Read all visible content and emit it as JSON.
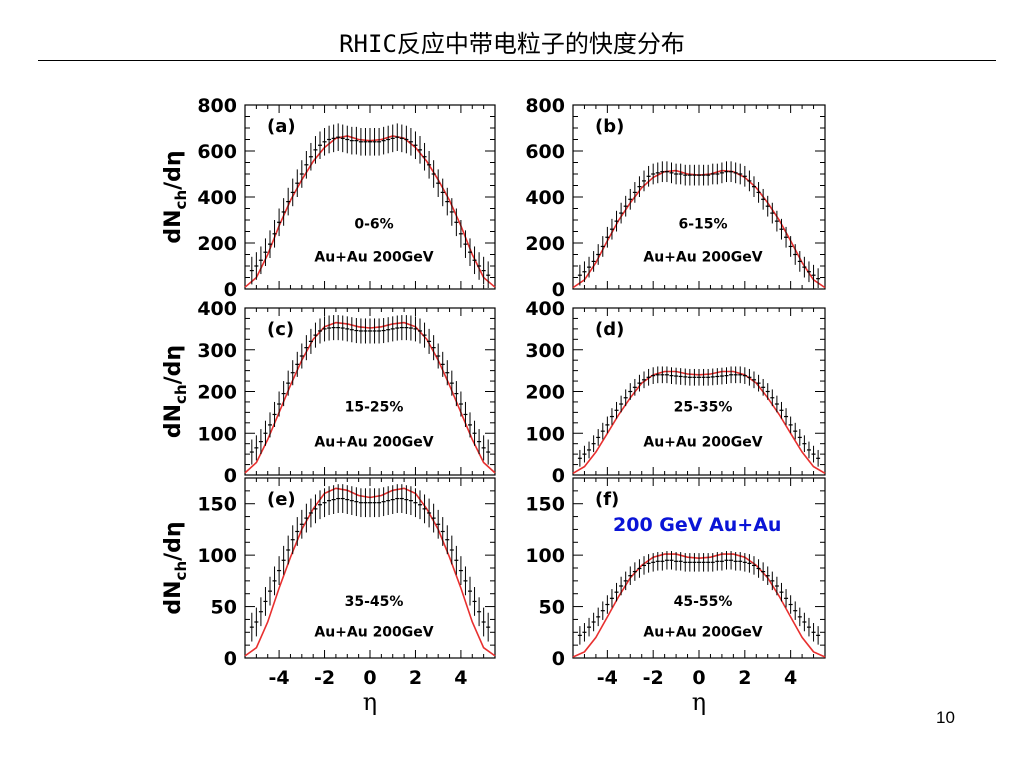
{
  "slide": {
    "title": "RHIC反应中带电粒子的快度分布",
    "page_number": "10"
  },
  "colors": {
    "model_curve": "#e8302f",
    "data_points": "#000000",
    "highlight_text": "#0a14d6"
  },
  "chart_data": [
    {
      "type": "scatter",
      "panel": "(a)",
      "centrality": "0-6%",
      "system": "Au+Au 200GeV",
      "ylabel_main": "dN",
      "ylabel_sub": "ch",
      "ylabel_tail": "/dη",
      "xlabel": "",
      "xlim": [
        -5.5,
        5.5
      ],
      "ylim": [
        0,
        800
      ],
      "yticks": [
        0,
        200,
        400,
        600,
        800
      ],
      "xticks": [
        -4,
        -2,
        0,
        2,
        4
      ],
      "x": [
        -5.2,
        -5.0,
        -4.8,
        -4.6,
        -4.4,
        -4.2,
        -4.0,
        -3.8,
        -3.6,
        -3.4,
        -3.2,
        -3.0,
        -2.8,
        -2.6,
        -2.4,
        -2.2,
        -2.0,
        -1.8,
        -1.6,
        -1.4,
        -1.2,
        -1.0,
        -0.8,
        -0.6,
        -0.4,
        -0.2,
        0.0,
        0.2,
        0.4,
        0.6,
        0.8,
        1.0,
        1.2,
        1.4,
        1.6,
        1.8,
        2.0,
        2.2,
        2.4,
        2.6,
        2.8,
        3.0,
        3.2,
        3.4,
        3.6,
        3.8,
        4.0,
        4.2,
        4.4,
        4.6,
        4.8,
        5.0,
        5.2
      ],
      "y": [
        80,
        100,
        125,
        160,
        195,
        240,
        290,
        335,
        380,
        420,
        460,
        500,
        540,
        575,
        605,
        625,
        640,
        650,
        655,
        660,
        655,
        650,
        645,
        645,
        640,
        640,
        640,
        640,
        640,
        645,
        650,
        655,
        660,
        655,
        650,
        640,
        625,
        605,
        575,
        540,
        500,
        460,
        420,
        380,
        335,
        290,
        240,
        195,
        160,
        125,
        100,
        80,
        60
      ],
      "yerr": 60,
      "model_x": [
        -5.5,
        -5.0,
        -4.5,
        -4.0,
        -3.5,
        -3.0,
        -2.5,
        -2.0,
        -1.5,
        -1.0,
        -0.5,
        0.0,
        0.5,
        1.0,
        1.5,
        2.0,
        2.5,
        3.0,
        3.5,
        4.0,
        4.5,
        5.0,
        5.5
      ],
      "model_y": [
        8,
        50,
        150,
        275,
        385,
        475,
        555,
        615,
        655,
        665,
        650,
        645,
        650,
        665,
        655,
        615,
        555,
        475,
        385,
        275,
        150,
        50,
        8
      ]
    },
    {
      "type": "scatter",
      "panel": "(b)",
      "centrality": "6-15%",
      "system": "Au+Au 200GeV",
      "ylabel_main": "",
      "ylabel_sub": "",
      "ylabel_tail": "",
      "xlabel": "",
      "xlim": [
        -5.5,
        5.5
      ],
      "ylim": [
        0,
        800
      ],
      "yticks": [
        0,
        200,
        400,
        600,
        800
      ],
      "xticks": [
        -4,
        -2,
        0,
        2,
        4
      ],
      "x": [
        -5.2,
        -5.0,
        -4.8,
        -4.6,
        -4.4,
        -4.2,
        -4.0,
        -3.8,
        -3.6,
        -3.4,
        -3.2,
        -3.0,
        -2.8,
        -2.6,
        -2.4,
        -2.2,
        -2.0,
        -1.8,
        -1.6,
        -1.4,
        -1.2,
        -1.0,
        -0.8,
        -0.6,
        -0.4,
        -0.2,
        0.0,
        0.2,
        0.4,
        0.6,
        0.8,
        1.0,
        1.2,
        1.4,
        1.6,
        1.8,
        2.0,
        2.2,
        2.4,
        2.6,
        2.8,
        3.0,
        3.2,
        3.4,
        3.6,
        3.8,
        4.0,
        4.2,
        4.4,
        4.6,
        4.8,
        5.0,
        5.2
      ],
      "y": [
        60,
        75,
        95,
        120,
        150,
        185,
        225,
        260,
        295,
        330,
        360,
        390,
        420,
        445,
        470,
        490,
        500,
        505,
        510,
        510,
        505,
        500,
        500,
        495,
        495,
        495,
        495,
        495,
        495,
        500,
        500,
        505,
        510,
        510,
        505,
        500,
        490,
        470,
        445,
        420,
        390,
        360,
        330,
        295,
        260,
        225,
        185,
        150,
        120,
        95,
        75,
        60,
        45
      ],
      "yerr": 45,
      "model_x": [
        -5.5,
        -5.0,
        -4.5,
        -4.0,
        -3.5,
        -3.0,
        -2.5,
        -2.0,
        -1.5,
        -1.0,
        -0.5,
        0.0,
        0.5,
        1.0,
        1.5,
        2.0,
        2.5,
        3.0,
        3.5,
        4.0,
        4.5,
        5.0,
        5.5
      ],
      "model_y": [
        6,
        40,
        115,
        210,
        300,
        375,
        440,
        485,
        510,
        515,
        500,
        495,
        500,
        515,
        510,
        485,
        440,
        375,
        300,
        210,
        115,
        40,
        6
      ]
    },
    {
      "type": "scatter",
      "panel": "(c)",
      "centrality": "15-25%",
      "system": "Au+Au 200GeV",
      "ylabel_main": "dN",
      "ylabel_sub": "ch",
      "ylabel_tail": "/dη",
      "xlabel": "",
      "xlim": [
        -5.5,
        5.5
      ],
      "ylim": [
        0,
        400
      ],
      "yticks": [
        0,
        100,
        200,
        300,
        400
      ],
      "xticks": [
        -4,
        -2,
        0,
        2,
        4
      ],
      "x": [
        -5.2,
        -5.0,
        -4.8,
        -4.6,
        -4.4,
        -4.2,
        -4.0,
        -3.8,
        -3.6,
        -3.4,
        -3.2,
        -3.0,
        -2.8,
        -2.6,
        -2.4,
        -2.2,
        -2.0,
        -1.8,
        -1.6,
        -1.4,
        -1.2,
        -1.0,
        -0.8,
        -0.6,
        -0.4,
        -0.2,
        0.0,
        0.2,
        0.4,
        0.6,
        0.8,
        1.0,
        1.2,
        1.4,
        1.6,
        1.8,
        2.0,
        2.2,
        2.4,
        2.6,
        2.8,
        3.0,
        3.2,
        3.4,
        3.6,
        3.8,
        4.0,
        4.2,
        4.4,
        4.6,
        4.8,
        5.0,
        5.2
      ],
      "y": [
        55,
        65,
        80,
        100,
        120,
        145,
        170,
        195,
        220,
        245,
        265,
        285,
        305,
        320,
        335,
        345,
        350,
        352,
        353,
        353,
        352,
        350,
        348,
        346,
        345,
        345,
        345,
        345,
        345,
        346,
        348,
        350,
        352,
        353,
        353,
        352,
        350,
        345,
        335,
        320,
        305,
        285,
        265,
        245,
        220,
        195,
        170,
        145,
        120,
        100,
        80,
        65,
        55
      ],
      "yerr": 30,
      "model_x": [
        -5.5,
        -5.0,
        -4.5,
        -4.0,
        -3.5,
        -3.0,
        -2.5,
        -2.0,
        -1.5,
        -1.0,
        -0.5,
        0.0,
        0.5,
        1.0,
        1.5,
        2.0,
        2.5,
        3.0,
        3.5,
        4.0,
        4.5,
        5.0,
        5.5
      ],
      "model_y": [
        5,
        30,
        85,
        150,
        215,
        275,
        325,
        355,
        365,
        362,
        355,
        352,
        355,
        362,
        365,
        355,
        325,
        275,
        215,
        150,
        85,
        30,
        5
      ]
    },
    {
      "type": "scatter",
      "panel": "(d)",
      "centrality": "25-35%",
      "system": "Au+Au 200GeV",
      "ylabel_main": "",
      "ylabel_sub": "",
      "ylabel_tail": "",
      "xlabel": "",
      "xlim": [
        -5.5,
        5.5
      ],
      "ylim": [
        0,
        400
      ],
      "yticks": [
        0,
        100,
        200,
        300,
        400
      ],
      "xticks": [
        -4,
        -2,
        0,
        2,
        4
      ],
      "x": [
        -5.2,
        -5.0,
        -4.8,
        -4.6,
        -4.4,
        -4.2,
        -4.0,
        -3.8,
        -3.6,
        -3.4,
        -3.2,
        -3.0,
        -2.8,
        -2.6,
        -2.4,
        -2.2,
        -2.0,
        -1.8,
        -1.6,
        -1.4,
        -1.2,
        -1.0,
        -0.8,
        -0.6,
        -0.4,
        -0.2,
        0.0,
        0.2,
        0.4,
        0.6,
        0.8,
        1.0,
        1.2,
        1.4,
        1.6,
        1.8,
        2.0,
        2.2,
        2.4,
        2.6,
        2.8,
        3.0,
        3.2,
        3.4,
        3.6,
        3.8,
        4.0,
        4.2,
        4.4,
        4.6,
        4.8,
        5.0,
        5.2
      ],
      "y": [
        40,
        50,
        60,
        75,
        90,
        105,
        120,
        140,
        155,
        170,
        185,
        200,
        210,
        220,
        228,
        234,
        238,
        240,
        240,
        240,
        238,
        237,
        236,
        235,
        234,
        234,
        234,
        234,
        234,
        235,
        236,
        237,
        238,
        240,
        240,
        240,
        238,
        234,
        228,
        220,
        210,
        200,
        185,
        170,
        155,
        140,
        120,
        105,
        90,
        75,
        60,
        50,
        40
      ],
      "yerr": 20,
      "model_x": [
        -5.5,
        -5.0,
        -4.5,
        -4.0,
        -3.5,
        -3.0,
        -2.5,
        -2.0,
        -1.5,
        -1.0,
        -0.5,
        0.0,
        0.5,
        1.0,
        1.5,
        2.0,
        2.5,
        3.0,
        3.5,
        4.0,
        4.5,
        5.0,
        5.5
      ],
      "model_y": [
        4,
        20,
        55,
        100,
        145,
        185,
        220,
        240,
        248,
        248,
        242,
        240,
        242,
        248,
        248,
        240,
        220,
        185,
        145,
        100,
        55,
        20,
        4
      ]
    },
    {
      "type": "scatter",
      "panel": "(e)",
      "centrality": "35-45%",
      "system": "Au+Au 200GeV",
      "ylabel_main": "dN",
      "ylabel_sub": "ch",
      "ylabel_tail": "/dη",
      "xlabel": "η",
      "xlim": [
        -5.5,
        5.5
      ],
      "ylim": [
        0,
        175
      ],
      "yticks": [
        0,
        50,
        100,
        150
      ],
      "xticks": [
        -4,
        -2,
        0,
        2,
        4
      ],
      "x": [
        -5.2,
        -5.0,
        -4.8,
        -4.6,
        -4.4,
        -4.2,
        -4.0,
        -3.8,
        -3.6,
        -3.4,
        -3.2,
        -3.0,
        -2.8,
        -2.6,
        -2.4,
        -2.2,
        -2.0,
        -1.8,
        -1.6,
        -1.4,
        -1.2,
        -1.0,
        -0.8,
        -0.6,
        -0.4,
        -0.2,
        0.0,
        0.2,
        0.4,
        0.6,
        0.8,
        1.0,
        1.2,
        1.4,
        1.6,
        1.8,
        2.0,
        2.2,
        2.4,
        2.6,
        2.8,
        3.0,
        3.2,
        3.4,
        3.6,
        3.8,
        4.0,
        4.2,
        4.4,
        4.6,
        4.8,
        5.0,
        5.2
      ],
      "y": [
        30,
        35,
        45,
        55,
        65,
        75,
        85,
        95,
        105,
        115,
        123,
        130,
        136,
        141,
        145,
        149,
        151,
        153,
        154,
        155,
        155,
        154,
        153,
        152,
        151,
        151,
        151,
        151,
        151,
        152,
        153,
        154,
        155,
        155,
        154,
        153,
        151,
        149,
        145,
        141,
        136,
        130,
        123,
        115,
        105,
        95,
        85,
        75,
        65,
        55,
        45,
        35,
        30
      ],
      "yerr": 14,
      "model_x": [
        -5.5,
        -5.0,
        -4.5,
        -4.0,
        -3.5,
        -3.0,
        -2.5,
        -2.0,
        -1.5,
        -1.0,
        -0.5,
        0.0,
        0.5,
        1.0,
        1.5,
        2.0,
        2.5,
        3.0,
        3.5,
        4.0,
        4.5,
        5.0,
        5.5
      ],
      "model_y": [
        2,
        10,
        35,
        68,
        98,
        125,
        145,
        160,
        165,
        163,
        158,
        156,
        158,
        163,
        165,
        160,
        145,
        125,
        98,
        68,
        35,
        10,
        2
      ]
    },
    {
      "type": "scatter",
      "panel": "(f)",
      "centrality": "45-55%",
      "system": "Au+Au 200GeV",
      "highlight": "200 GeV Au+Au",
      "ylabel_main": "",
      "ylabel_sub": "",
      "ylabel_tail": "",
      "xlabel": "η",
      "xlim": [
        -5.5,
        5.5
      ],
      "ylim": [
        0,
        175
      ],
      "yticks": [
        0,
        50,
        100,
        150
      ],
      "xticks": [
        -4,
        -2,
        0,
        2,
        4
      ],
      "x": [
        -5.2,
        -5.0,
        -4.8,
        -4.6,
        -4.4,
        -4.2,
        -4.0,
        -3.8,
        -3.6,
        -3.4,
        -3.2,
        -3.0,
        -2.8,
        -2.6,
        -2.4,
        -2.2,
        -2.0,
        -1.8,
        -1.6,
        -1.4,
        -1.2,
        -1.0,
        -0.8,
        -0.6,
        -0.4,
        -0.2,
        0.0,
        0.2,
        0.4,
        0.6,
        0.8,
        1.0,
        1.2,
        1.4,
        1.6,
        1.8,
        2.0,
        2.2,
        2.4,
        2.6,
        2.8,
        3.0,
        3.2,
        3.4,
        3.6,
        3.8,
        4.0,
        4.2,
        4.4,
        4.6,
        4.8,
        5.0,
        5.2
      ],
      "y": [
        22,
        25,
        30,
        35,
        40,
        46,
        52,
        58,
        64,
        70,
        75,
        80,
        84,
        87,
        90,
        92,
        93,
        94,
        94,
        95,
        95,
        94,
        94,
        93,
        93,
        93,
        93,
        93,
        93,
        93,
        94,
        94,
        95,
        95,
        94,
        94,
        93,
        92,
        90,
        87,
        84,
        80,
        75,
        70,
        64,
        58,
        52,
        46,
        40,
        35,
        30,
        25,
        22
      ],
      "yerr": 9,
      "model_x": [
        -5.5,
        -5.0,
        -4.5,
        -4.0,
        -3.5,
        -3.0,
        -2.5,
        -2.0,
        -1.5,
        -1.0,
        -0.5,
        0.0,
        0.5,
        1.0,
        1.5,
        2.0,
        2.5,
        3.0,
        3.5,
        4.0,
        4.5,
        5.0,
        5.5
      ],
      "model_y": [
        1,
        6,
        20,
        40,
        60,
        78,
        90,
        98,
        101,
        101,
        98,
        97,
        98,
        101,
        101,
        98,
        90,
        78,
        60,
        40,
        20,
        6,
        1
      ]
    }
  ]
}
